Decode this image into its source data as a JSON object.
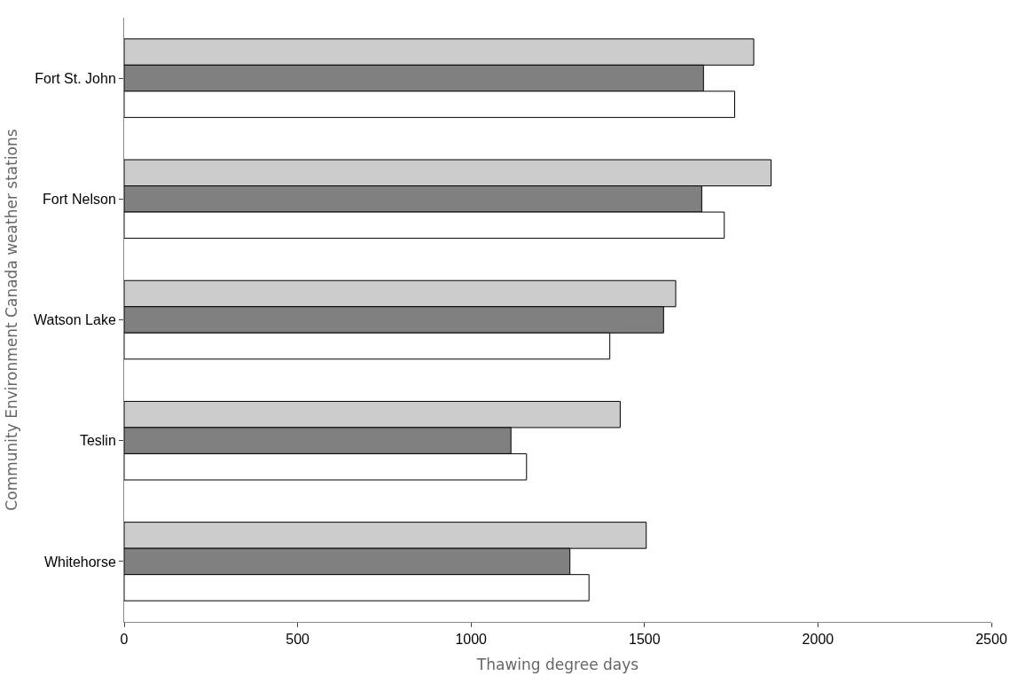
{
  "chart_data": {
    "type": "bar",
    "orientation": "horizontal",
    "xlabel": "Thawing degree days",
    "ylabel": "Community Environment Canada weather stations",
    "categories": [
      "Fort St. John",
      "Fort Nelson",
      "Watson Lake",
      "Teslin",
      "Whitehorse"
    ],
    "series": [
      {
        "color": "#cccccc",
        "values": [
          1815,
          1865,
          1590,
          1430,
          1505
        ]
      },
      {
        "color": "#808080",
        "values": [
          1670,
          1665,
          1555,
          1115,
          1285
        ]
      },
      {
        "color": "#ffffff",
        "values": [
          1760,
          1730,
          1400,
          1160,
          1340
        ]
      }
    ],
    "xlim": [
      0,
      2500
    ],
    "xticks": [
      0,
      500,
      1000,
      1500,
      2000,
      2500
    ],
    "grid": false
  }
}
